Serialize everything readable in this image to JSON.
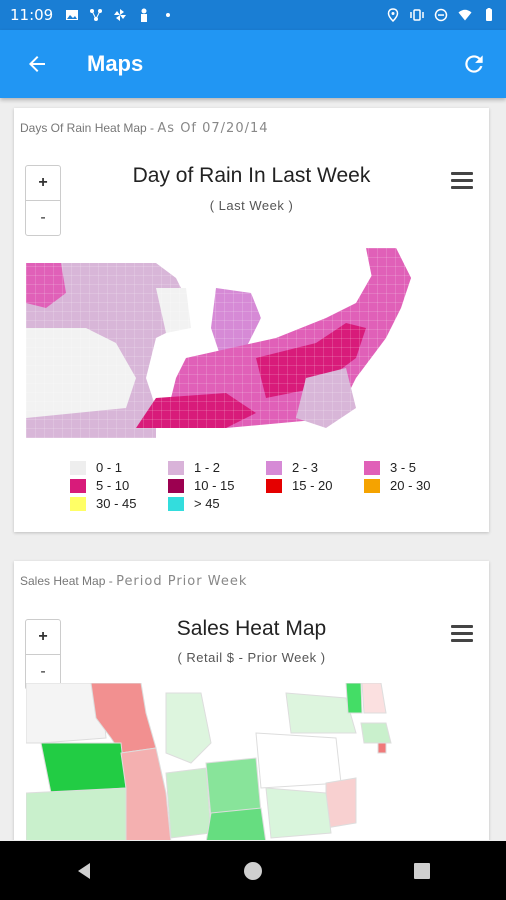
{
  "status_bar": {
    "time": "11:09"
  },
  "app_bar": {
    "title": "Maps"
  },
  "rain_card": {
    "header_title": "Days Of Rain Heat Map -",
    "header_sub": "As Of 07/20/14",
    "chart_title": "Day of Rain In Last Week",
    "chart_subtitle": "( Last Week )",
    "zoom_in": "+",
    "zoom_out": "-",
    "legend": [
      {
        "label": "0 - 1",
        "color": "#eeeeee"
      },
      {
        "label": "1 - 2",
        "color": "#d9b3d9"
      },
      {
        "label": "2 - 3",
        "color": "#d68ad6"
      },
      {
        "label": "3 - 5",
        "color": "#e060b8"
      },
      {
        "label": "5 - 10",
        "color": "#d81b7a"
      },
      {
        "label": "10 - 15",
        "color": "#9c0050"
      },
      {
        "label": "15 - 20",
        "color": "#e50000"
      },
      {
        "label": "20 - 30",
        "color": "#f5a300"
      },
      {
        "label": "30 - 45",
        "color": "#ffff66"
      },
      {
        "label": "> 45",
        "color": "#33dddd"
      }
    ]
  },
  "sales_card": {
    "header_title": "Sales Heat Map -",
    "header_sub": "Period Prior Week",
    "chart_title": "Sales Heat Map",
    "chart_subtitle": "( Retail $ - Prior Week )",
    "zoom_in": "+",
    "zoom_out": "-"
  },
  "colors": {
    "app_bar": "#2196f3",
    "status_bar": "#1a7ed4"
  }
}
